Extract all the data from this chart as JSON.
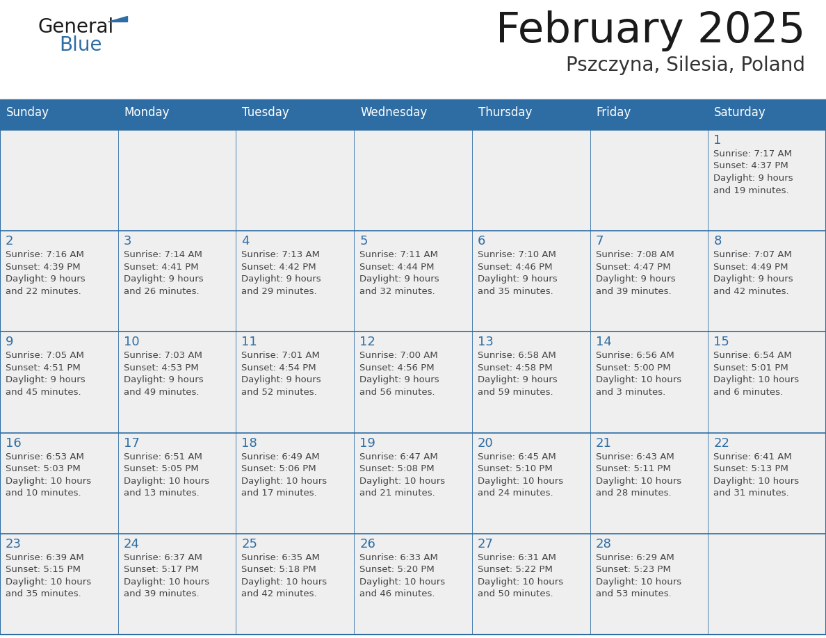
{
  "title": "February 2025",
  "subtitle": "Pszczyna, Silesia, Poland",
  "days_of_week": [
    "Sunday",
    "Monday",
    "Tuesday",
    "Wednesday",
    "Thursday",
    "Friday",
    "Saturday"
  ],
  "header_bg": "#2E6DA4",
  "header_text": "#FFFFFF",
  "cell_bg": "#EFEFEF",
  "border_color": "#2E6DA4",
  "day_num_color": "#2E6DA4",
  "text_color": "#444444",
  "title_color": "#1a1a1a",
  "subtitle_color": "#333333",
  "logo_general_color": "#1a1a1a",
  "logo_blue_color": "#2E6DA4",
  "logo_triangle_color": "#2E6DA4",
  "weeks": [
    [
      {
        "day": null,
        "text": ""
      },
      {
        "day": null,
        "text": ""
      },
      {
        "day": null,
        "text": ""
      },
      {
        "day": null,
        "text": ""
      },
      {
        "day": null,
        "text": ""
      },
      {
        "day": null,
        "text": ""
      },
      {
        "day": 1,
        "lines": [
          "Sunrise: 7:17 AM",
          "Sunset: 4:37 PM",
          "Daylight: 9 hours",
          "and 19 minutes."
        ]
      }
    ],
    [
      {
        "day": 2,
        "lines": [
          "Sunrise: 7:16 AM",
          "Sunset: 4:39 PM",
          "Daylight: 9 hours",
          "and 22 minutes."
        ]
      },
      {
        "day": 3,
        "lines": [
          "Sunrise: 7:14 AM",
          "Sunset: 4:41 PM",
          "Daylight: 9 hours",
          "and 26 minutes."
        ]
      },
      {
        "day": 4,
        "lines": [
          "Sunrise: 7:13 AM",
          "Sunset: 4:42 PM",
          "Daylight: 9 hours",
          "and 29 minutes."
        ]
      },
      {
        "day": 5,
        "lines": [
          "Sunrise: 7:11 AM",
          "Sunset: 4:44 PM",
          "Daylight: 9 hours",
          "and 32 minutes."
        ]
      },
      {
        "day": 6,
        "lines": [
          "Sunrise: 7:10 AM",
          "Sunset: 4:46 PM",
          "Daylight: 9 hours",
          "and 35 minutes."
        ]
      },
      {
        "day": 7,
        "lines": [
          "Sunrise: 7:08 AM",
          "Sunset: 4:47 PM",
          "Daylight: 9 hours",
          "and 39 minutes."
        ]
      },
      {
        "day": 8,
        "lines": [
          "Sunrise: 7:07 AM",
          "Sunset: 4:49 PM",
          "Daylight: 9 hours",
          "and 42 minutes."
        ]
      }
    ],
    [
      {
        "day": 9,
        "lines": [
          "Sunrise: 7:05 AM",
          "Sunset: 4:51 PM",
          "Daylight: 9 hours",
          "and 45 minutes."
        ]
      },
      {
        "day": 10,
        "lines": [
          "Sunrise: 7:03 AM",
          "Sunset: 4:53 PM",
          "Daylight: 9 hours",
          "and 49 minutes."
        ]
      },
      {
        "day": 11,
        "lines": [
          "Sunrise: 7:01 AM",
          "Sunset: 4:54 PM",
          "Daylight: 9 hours",
          "and 52 minutes."
        ]
      },
      {
        "day": 12,
        "lines": [
          "Sunrise: 7:00 AM",
          "Sunset: 4:56 PM",
          "Daylight: 9 hours",
          "and 56 minutes."
        ]
      },
      {
        "day": 13,
        "lines": [
          "Sunrise: 6:58 AM",
          "Sunset: 4:58 PM",
          "Daylight: 9 hours",
          "and 59 minutes."
        ]
      },
      {
        "day": 14,
        "lines": [
          "Sunrise: 6:56 AM",
          "Sunset: 5:00 PM",
          "Daylight: 10 hours",
          "and 3 minutes."
        ]
      },
      {
        "day": 15,
        "lines": [
          "Sunrise: 6:54 AM",
          "Sunset: 5:01 PM",
          "Daylight: 10 hours",
          "and 6 minutes."
        ]
      }
    ],
    [
      {
        "day": 16,
        "lines": [
          "Sunrise: 6:53 AM",
          "Sunset: 5:03 PM",
          "Daylight: 10 hours",
          "and 10 minutes."
        ]
      },
      {
        "day": 17,
        "lines": [
          "Sunrise: 6:51 AM",
          "Sunset: 5:05 PM",
          "Daylight: 10 hours",
          "and 13 minutes."
        ]
      },
      {
        "day": 18,
        "lines": [
          "Sunrise: 6:49 AM",
          "Sunset: 5:06 PM",
          "Daylight: 10 hours",
          "and 17 minutes."
        ]
      },
      {
        "day": 19,
        "lines": [
          "Sunrise: 6:47 AM",
          "Sunset: 5:08 PM",
          "Daylight: 10 hours",
          "and 21 minutes."
        ]
      },
      {
        "day": 20,
        "lines": [
          "Sunrise: 6:45 AM",
          "Sunset: 5:10 PM",
          "Daylight: 10 hours",
          "and 24 minutes."
        ]
      },
      {
        "day": 21,
        "lines": [
          "Sunrise: 6:43 AM",
          "Sunset: 5:11 PM",
          "Daylight: 10 hours",
          "and 28 minutes."
        ]
      },
      {
        "day": 22,
        "lines": [
          "Sunrise: 6:41 AM",
          "Sunset: 5:13 PM",
          "Daylight: 10 hours",
          "and 31 minutes."
        ]
      }
    ],
    [
      {
        "day": 23,
        "lines": [
          "Sunrise: 6:39 AM",
          "Sunset: 5:15 PM",
          "Daylight: 10 hours",
          "and 35 minutes."
        ]
      },
      {
        "day": 24,
        "lines": [
          "Sunrise: 6:37 AM",
          "Sunset: 5:17 PM",
          "Daylight: 10 hours",
          "and 39 minutes."
        ]
      },
      {
        "day": 25,
        "lines": [
          "Sunrise: 6:35 AM",
          "Sunset: 5:18 PM",
          "Daylight: 10 hours",
          "and 42 minutes."
        ]
      },
      {
        "day": 26,
        "lines": [
          "Sunrise: 6:33 AM",
          "Sunset: 5:20 PM",
          "Daylight: 10 hours",
          "and 46 minutes."
        ]
      },
      {
        "day": 27,
        "lines": [
          "Sunrise: 6:31 AM",
          "Sunset: 5:22 PM",
          "Daylight: 10 hours",
          "and 50 minutes."
        ]
      },
      {
        "day": 28,
        "lines": [
          "Sunrise: 6:29 AM",
          "Sunset: 5:23 PM",
          "Daylight: 10 hours",
          "and 53 minutes."
        ]
      },
      {
        "day": null,
        "lines": []
      }
    ]
  ]
}
